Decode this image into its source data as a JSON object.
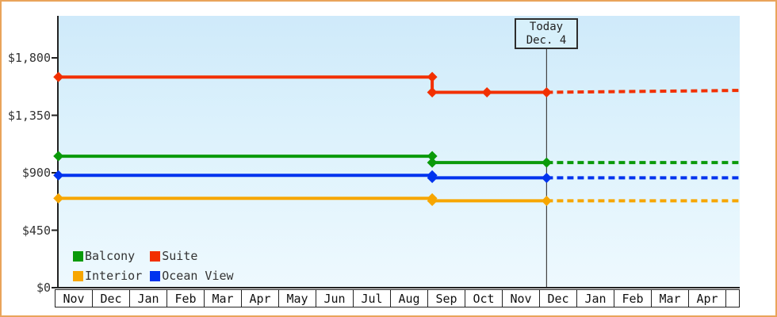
{
  "window": {
    "border_color": "#e9a45b",
    "plot_bg_top": "#cfeafa",
    "plot_bg_bottom": "#eef9fe",
    "axis_color": "#222222",
    "today_line_color": "#444444"
  },
  "chart_data": {
    "type": "line",
    "title": "",
    "description": "Cabin price history by category with dotted projection after today",
    "y_axis": {
      "ticks": [
        {
          "label": "$1,800",
          "value": 1800
        },
        {
          "label": "$1,350",
          "value": 1350
        },
        {
          "label": "$900",
          "value": 900
        },
        {
          "label": "$450",
          "value": 450
        },
        {
          "label": "$0",
          "value": 0
        }
      ],
      "range": [
        0,
        2130
      ],
      "grid": false
    },
    "x_axis": {
      "unit": "month",
      "labels": [
        "Nov",
        "Dec",
        "Jan",
        "Feb",
        "Mar",
        "Apr",
        "May",
        "Jun",
        "Jul",
        "Aug",
        "Sep",
        "Oct",
        "Nov",
        "Dec",
        "Jan",
        "Feb",
        "Mar",
        "Apr"
      ]
    },
    "today": {
      "label_line1": "Today",
      "label_line2": "Dec. 4",
      "t": 13.2
    },
    "series": [
      {
        "name": "Balcony",
        "color": "#0a9a0a",
        "history": [
          [
            0.1,
            1030
          ],
          [
            10.13,
            1030
          ],
          [
            10.13,
            980
          ],
          [
            13.2,
            980
          ]
        ],
        "forecast": [
          [
            13.2,
            980
          ],
          [
            18.35,
            980
          ]
        ],
        "markers": [
          [
            0.1,
            1030
          ],
          [
            10.13,
            1030
          ],
          [
            10.13,
            980
          ],
          [
            13.2,
            980
          ]
        ]
      },
      {
        "name": "Suite",
        "color": "#f23000",
        "history": [
          [
            0.1,
            1650
          ],
          [
            10.13,
            1650
          ],
          [
            10.13,
            1530
          ],
          [
            13.2,
            1530
          ]
        ],
        "forecast": [
          [
            13.2,
            1530
          ],
          [
            18.35,
            1545
          ]
        ],
        "markers": [
          [
            0.1,
            1650
          ],
          [
            10.13,
            1650
          ],
          [
            10.13,
            1530
          ],
          [
            11.6,
            1530
          ],
          [
            13.2,
            1530
          ]
        ]
      },
      {
        "name": "Interior",
        "color": "#f7a600",
        "history": [
          [
            0.1,
            700
          ],
          [
            10.13,
            700
          ],
          [
            10.13,
            680
          ],
          [
            13.2,
            680
          ]
        ],
        "forecast": [
          [
            13.2,
            680
          ],
          [
            18.35,
            680
          ]
        ],
        "markers": [
          [
            0.1,
            700
          ],
          [
            10.13,
            700
          ],
          [
            10.13,
            680
          ],
          [
            13.2,
            680
          ]
        ]
      },
      {
        "name": "Ocean View",
        "color": "#0033ee",
        "history": [
          [
            0.1,
            880
          ],
          [
            10.13,
            880
          ],
          [
            10.13,
            860
          ],
          [
            13.2,
            860
          ]
        ],
        "forecast": [
          [
            13.2,
            860
          ],
          [
            18.35,
            860
          ]
        ],
        "markers": [
          [
            0.1,
            880
          ],
          [
            10.13,
            880
          ],
          [
            10.13,
            860
          ],
          [
            13.2,
            860
          ]
        ]
      }
    ],
    "legend": [
      {
        "label": "Balcony",
        "color": "#0a9a0a"
      },
      {
        "label": "Suite",
        "color": "#f23000"
      },
      {
        "label": "Interior",
        "color": "#f7a600"
      },
      {
        "label": "Ocean View",
        "color": "#0033ee"
      }
    ],
    "legend_position": "bottom-left"
  }
}
